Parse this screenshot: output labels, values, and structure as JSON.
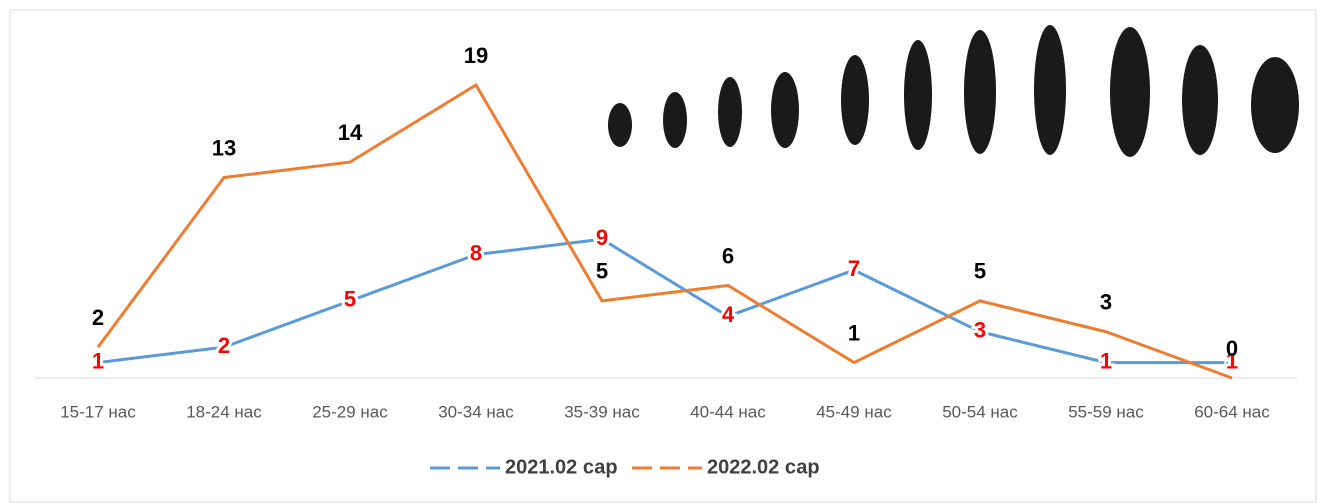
{
  "chart_data": {
    "type": "line",
    "categories": [
      "15-17 нас",
      "18-24 нас",
      "25-29 нас",
      "30-34 нас",
      "35-39 нас",
      "40-44 нас",
      "45-49 нас",
      "50-54 нас",
      "55-59 нас",
      "60-64 нас"
    ],
    "series": [
      {
        "name": "2021.02 сар",
        "color": "#5b9bd5",
        "label_color": "#ff0000",
        "values": [
          1,
          2,
          5,
          8,
          9,
          4,
          7,
          3,
          1,
          1
        ]
      },
      {
        "name": "2022.02 сар",
        "color": "#ed7d31",
        "label_color": "#000000",
        "values": [
          2,
          13,
          14,
          19,
          5,
          6,
          1,
          5,
          3,
          0
        ]
      }
    ]
  }
}
